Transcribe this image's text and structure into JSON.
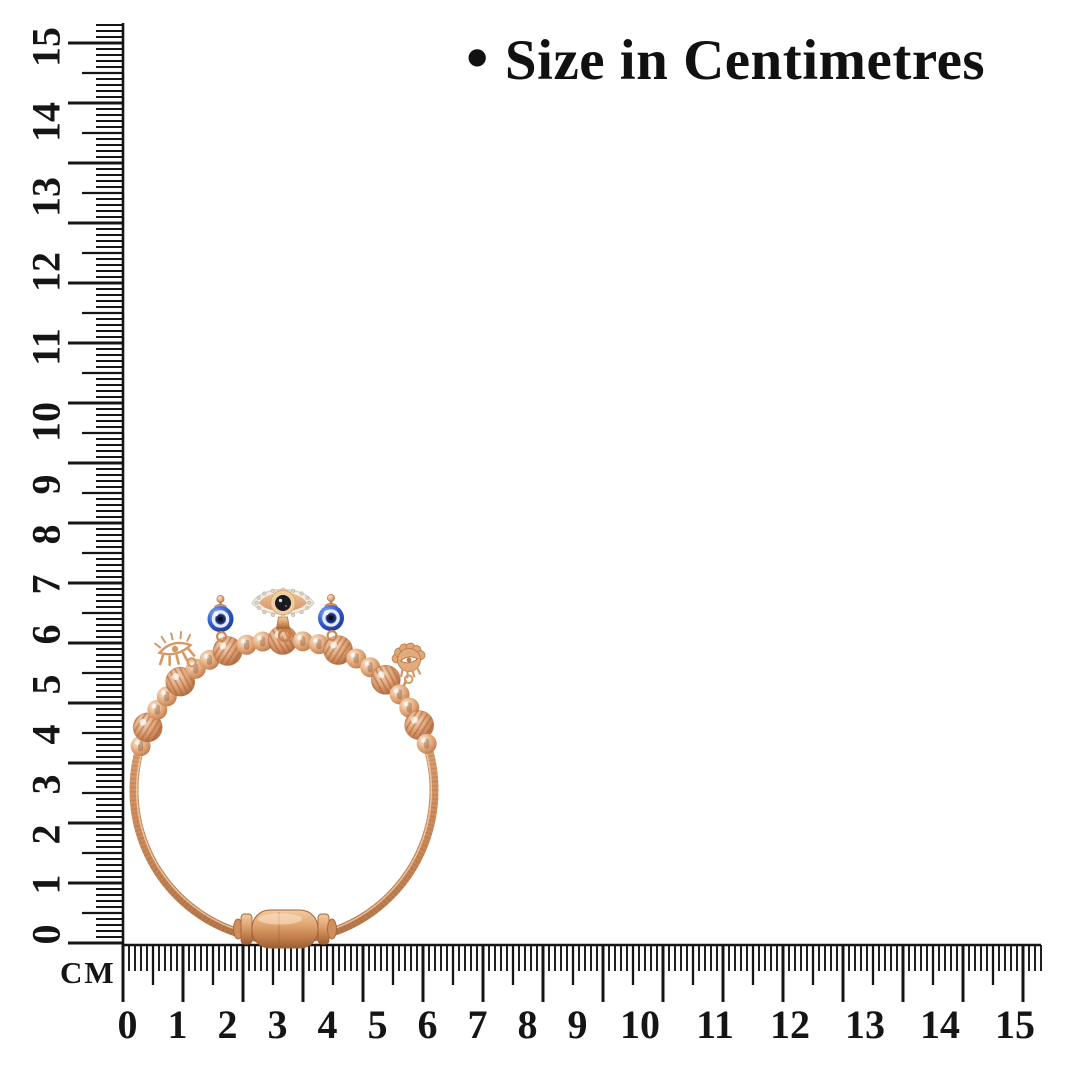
{
  "title": {
    "bullet": "•",
    "text": "Size in Centimetres"
  },
  "rulers": {
    "unit_label": "CM",
    "horizontal_labels": [
      "0",
      "1",
      "2",
      "3",
      "4",
      "5",
      "6",
      "7",
      "8",
      "9",
      "10",
      "11",
      "12",
      "13",
      "14",
      "15"
    ],
    "vertical_labels": [
      "0",
      "1",
      "2",
      "3",
      "4",
      "5",
      "6",
      "7",
      "8",
      "9",
      "10",
      "11",
      "12",
      "13",
      "14",
      "15"
    ],
    "range_cm": [
      0,
      15
    ]
  },
  "product": {
    "kind": "rose-gold beaded cable bangle with evil-eye charms",
    "charms": [
      "eyelash-eye-cutout",
      "blue-evil-eye-bead",
      "crystal-pave-evil-eye",
      "blue-evil-eye-bead",
      "fan-eyelash-cutout"
    ],
    "clasp": "barrel clasp",
    "approx_width_cm": 5.3,
    "approx_height_cm": 6.1
  },
  "colors": {
    "ink": "#151515",
    "background": "#ffffff",
    "rose_gold": "#d99f6c",
    "rose_gold_light": "#f8e0c6",
    "rose_gold_deep": "#a96a3e",
    "evil_eye_blue": "#3b63d4",
    "evil_eye_navy": "#192a6e",
    "pave_white": "#f3efe7",
    "pupil_black": "#1a191e"
  }
}
